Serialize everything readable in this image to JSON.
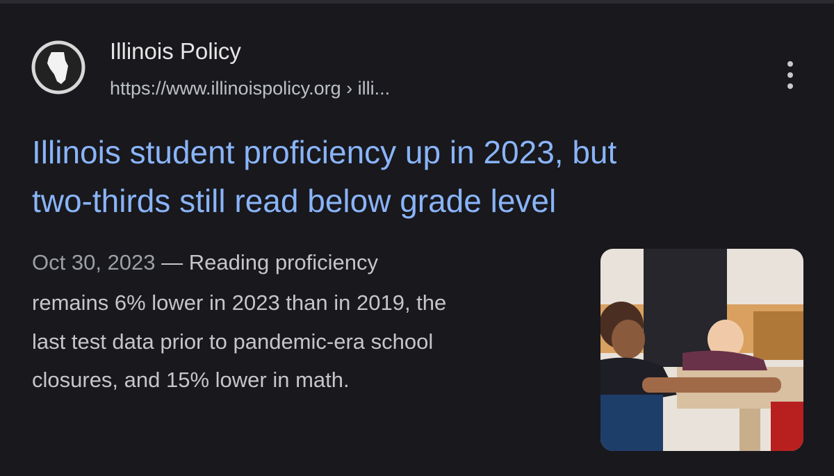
{
  "result": {
    "site_name": "Illinois Policy",
    "url": "https://www.illinoispolicy.org › illi...",
    "title_lines": [
      "Illinois student proficiency up in 2023, but",
      "two-thirds still read below grade level"
    ],
    "date": "Oct 30, 2023",
    "snippet_lines": [
      "— Reading proficiency",
      "remains 6% lower in 2023 than in 2019, the",
      "last test data prior to pandemic-era school",
      "closures, and 15% lower in math."
    ]
  }
}
